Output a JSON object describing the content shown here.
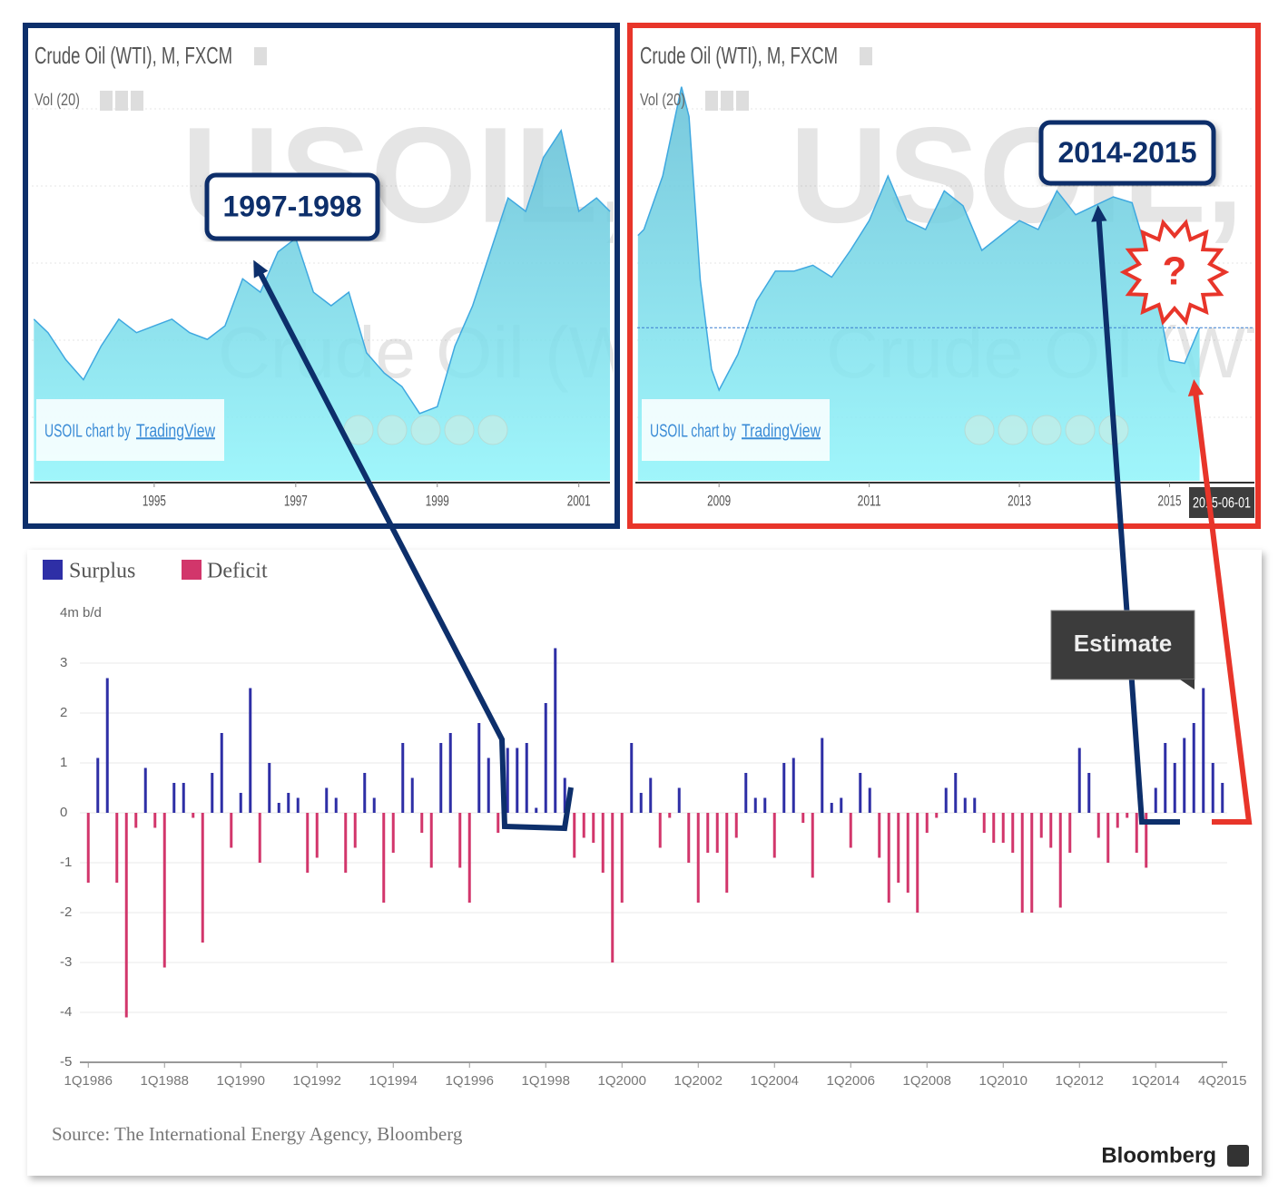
{
  "chart_data": [
    {
      "type": "area",
      "title": "Crude Oil (WTI), M, FXCM",
      "subtitle": "Vol (20)",
      "watermark": [
        "USOIL, M",
        "Crude Oil (WTI)"
      ],
      "credit": "USOIL chart by",
      "credit_link": "TradingView",
      "annotation": "1997-1998",
      "x": [
        1993.3,
        1993.5,
        1993.75,
        1994,
        1994.25,
        1994.5,
        1994.75,
        1995,
        1995.25,
        1995.5,
        1995.75,
        1996,
        1996.25,
        1996.5,
        1996.75,
        1997,
        1997.25,
        1997.5,
        1997.75,
        1998,
        1998.25,
        1998.5,
        1998.75,
        1999,
        1999.25,
        1999.5,
        1999.75,
        2000,
        2000.25,
        2000.5,
        2000.75,
        2001,
        2001.25,
        2001.44
      ],
      "values": [
        19,
        18,
        16,
        14.5,
        17,
        19,
        18,
        18.5,
        19,
        18,
        17.5,
        18.5,
        22,
        21,
        24,
        25,
        21,
        20,
        21,
        16.5,
        15,
        14,
        12,
        12.5,
        17,
        20,
        24,
        28,
        27,
        31,
        33,
        27,
        28,
        27
      ],
      "color": "#5fd3e6",
      "xlim": [
        1993.27,
        2001.44
      ],
      "xticks": [
        1995,
        1997,
        1999,
        2001
      ],
      "ylim": [
        7,
        40
      ]
    },
    {
      "type": "area",
      "title": "Crude Oil (WTI), M, FXCM",
      "subtitle": "Vol (20)",
      "watermark": [
        "USOIL, M",
        "Crude Oil (WTI)"
      ],
      "credit": "USOIL chart by",
      "credit_link": "TradingView",
      "annotation": "2014-2015",
      "alert": "?",
      "cursor_label": "2015-06-01",
      "x": [
        2007.92,
        2008,
        2008.25,
        2008.5,
        2008.6,
        2008.75,
        2008.9,
        2009,
        2009.25,
        2009.5,
        2009.75,
        2010,
        2010.25,
        2010.5,
        2010.75,
        2011,
        2011.25,
        2011.5,
        2011.75,
        2012,
        2012.25,
        2012.5,
        2012.75,
        2013,
        2013.25,
        2013.5,
        2013.75,
        2014,
        2014.25,
        2014.5,
        2014.75,
        2015,
        2015.2,
        2015.4
      ],
      "values": [
        90,
        92,
        110,
        140,
        130,
        75,
        45,
        38,
        50,
        68,
        78,
        78,
        80,
        76,
        85,
        95,
        110,
        95,
        92,
        105,
        100,
        85,
        90,
        95,
        92,
        105,
        97,
        100,
        103,
        101,
        80,
        48,
        47,
        59
      ],
      "color": "#5fd3e6",
      "xlim": [
        2007.91,
        2016.13
      ],
      "xticks": [
        2009,
        2011,
        2013,
        2015
      ],
      "ylim": [
        7.5,
        157
      ]
    },
    {
      "type": "bar",
      "annotation": "Estimate",
      "source": "Source: The International Energy Agency, Bloomberg",
      "brand": "Bloomberg",
      "categories": [
        "1Q1986",
        null,
        null,
        null,
        null,
        null,
        null,
        null,
        "1Q1988",
        null,
        null,
        null,
        null,
        null,
        null,
        null,
        "1Q1990",
        null,
        null,
        null,
        null,
        null,
        null,
        null,
        "1Q1992",
        null,
        null,
        null,
        null,
        null,
        null,
        null,
        "1Q1994",
        null,
        null,
        null,
        null,
        null,
        null,
        null,
        "1Q1996",
        null,
        null,
        null,
        null,
        null,
        null,
        null,
        "1Q1998",
        null,
        null,
        null,
        null,
        null,
        null,
        null,
        "1Q2000",
        null,
        null,
        null,
        null,
        null,
        null,
        null,
        "1Q2002",
        null,
        null,
        null,
        null,
        null,
        null,
        null,
        "1Q2004",
        null,
        null,
        null,
        null,
        null,
        null,
        null,
        "1Q2006",
        null,
        null,
        null,
        null,
        null,
        null,
        null,
        "1Q2008",
        null,
        null,
        null,
        null,
        null,
        null,
        null,
        "1Q2010",
        null,
        null,
        null,
        null,
        null,
        null,
        null,
        "1Q2012",
        null,
        null,
        null,
        null,
        null,
        null,
        null,
        "1Q2014",
        null,
        null,
        null,
        null,
        null,
        null,
        "4Q2015"
      ],
      "series": [
        {
          "name": "Surplus",
          "color": "#2e2fa6",
          "values": [
            null,
            1.1,
            2.7,
            null,
            null,
            null,
            0.9,
            null,
            null,
            0.6,
            0.6,
            null,
            null,
            0.8,
            1.6,
            null,
            0.4,
            2.5,
            null,
            1.0,
            0.2,
            0.4,
            0.3,
            null,
            null,
            0.5,
            0.3,
            null,
            null,
            0.8,
            0.3,
            null,
            null,
            1.4,
            0.7,
            null,
            null,
            1.4,
            1.6,
            null,
            null,
            1.8,
            1.1,
            null,
            1.3,
            1.3,
            1.4,
            0.1,
            2.2,
            3.3,
            0.7,
            null,
            null,
            null,
            null,
            null,
            null,
            1.4,
            0.4,
            0.7,
            null,
            null,
            0.5,
            null,
            null,
            null,
            null,
            null,
            null,
            0.8,
            0.3,
            0.3,
            null,
            1.0,
            1.1,
            null,
            null,
            1.5,
            0.2,
            0.3,
            null,
            0.8,
            0.5,
            null,
            null,
            null,
            null,
            null,
            null,
            null,
            0.5,
            0.8,
            0.3,
            0.3,
            null,
            null,
            null,
            null,
            null,
            null,
            null,
            null,
            null,
            null,
            1.3,
            0.8,
            null,
            null,
            null,
            null,
            null,
            null,
            0.5,
            1.4,
            1.0,
            1.5,
            1.8,
            2.5,
            1.0,
            0.6
          ]
        },
        {
          "name": "Deficit",
          "color": "#d2366b",
          "values": [
            -1.4,
            null,
            null,
            -1.4,
            -4.1,
            -0.3,
            null,
            -0.3,
            -3.1,
            null,
            null,
            -0.1,
            -2.6,
            null,
            null,
            -0.7,
            null,
            null,
            -1.0,
            null,
            null,
            null,
            null,
            -1.2,
            -0.9,
            null,
            null,
            -1.2,
            -0.7,
            null,
            null,
            -1.8,
            -0.8,
            null,
            null,
            -0.4,
            -1.1,
            null,
            null,
            -1.1,
            -1.8,
            null,
            null,
            -0.4,
            null,
            null,
            null,
            null,
            null,
            null,
            null,
            -0.9,
            -0.5,
            -0.6,
            -1.2,
            -3.0,
            -1.8,
            null,
            null,
            null,
            -0.7,
            -0.1,
            null,
            -1.0,
            -1.8,
            -0.8,
            -0.8,
            -1.6,
            -0.5,
            null,
            null,
            null,
            -0.9,
            null,
            null,
            -0.2,
            -1.3,
            null,
            null,
            null,
            -0.7,
            null,
            null,
            -0.9,
            -1.8,
            -1.4,
            -1.6,
            -2.0,
            -0.4,
            -0.1,
            null,
            null,
            null,
            null,
            -0.4,
            -0.6,
            -0.6,
            -0.8,
            -2.0,
            -2.0,
            -0.5,
            -0.7,
            -1.9,
            -0.8,
            null,
            null,
            -0.5,
            -1.0,
            -0.3,
            -0.1,
            -0.8,
            -1.1,
            null,
            null,
            null,
            null,
            null,
            null,
            null,
            null
          ]
        }
      ],
      "ylim": [
        -5,
        4
      ],
      "yticks": [
        {
          "value": 4,
          "label": "4m b/d"
        },
        3,
        2,
        1,
        0,
        -1,
        -2,
        -3,
        -4,
        -5
      ],
      "grid": true
    }
  ]
}
